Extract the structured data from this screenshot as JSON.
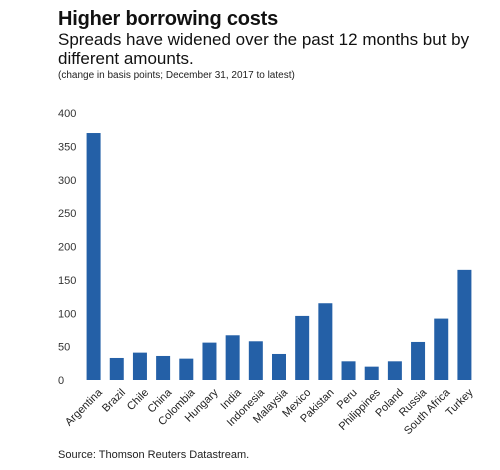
{
  "header": {
    "title": "Higher borrowing costs",
    "subtitle": "Spreads have widened over the past 12 months but by different amounts.",
    "note": "(change in basis points; December 31, 2017 to latest)"
  },
  "footer": {
    "source": "Source: Thomson Reuters Datastream."
  },
  "chart_data": {
    "type": "bar",
    "categories": [
      "Argentina",
      "Brazil",
      "Chile",
      "China",
      "Colombia",
      "Hungary",
      "India",
      "Indonesia",
      "Malaysia",
      "Mexico",
      "Pakistan",
      "Peru",
      "Philippines",
      "Poland",
      "Russia",
      "South Africa",
      "Turkey"
    ],
    "values": [
      370,
      33,
      41,
      36,
      32,
      56,
      67,
      58,
      39,
      96,
      115,
      28,
      20,
      28,
      57,
      92,
      165
    ],
    "yticks": [
      0,
      50,
      100,
      150,
      200,
      250,
      300,
      350,
      400
    ],
    "ylim": [
      0,
      400
    ],
    "bar_color": "#2460a7",
    "grid": false,
    "legend": "none"
  }
}
